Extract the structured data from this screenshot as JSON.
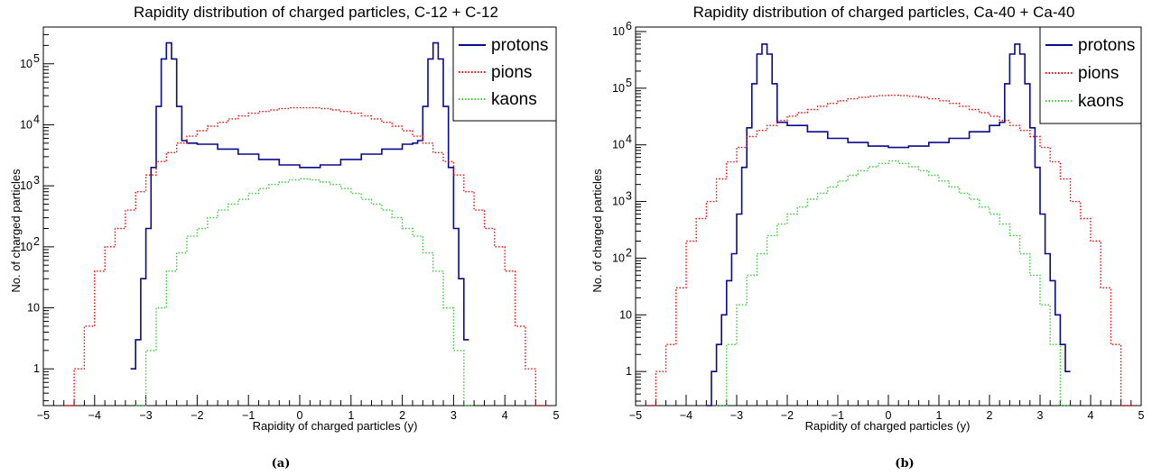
{
  "chart_data": [
    {
      "type": "line",
      "title": "Rapidity distribution of charged particles, C-12 + C-12",
      "xlabel": "Rapidity of charged particles (y)",
      "ylabel": "No. of charged particles",
      "caption": "(a)",
      "xlim": [
        -5,
        5
      ],
      "ylim": [
        0.25,
        400000
      ],
      "yscale": "log",
      "grid": false,
      "legend_position": "top-right",
      "x_ticks": [
        "−5",
        "−4",
        "−3",
        "−2",
        "−1",
        "0",
        "1",
        "2",
        "3",
        "4",
        "5"
      ],
      "y_ticks": [
        {
          "value": 1,
          "label": "1",
          "exp": ""
        },
        {
          "value": 10,
          "label": "10",
          "exp": ""
        },
        {
          "value": 100,
          "label": "10",
          "exp": "2"
        },
        {
          "value": 1000,
          "label": "10",
          "exp": "3"
        },
        {
          "value": 10000,
          "label": "10",
          "exp": "4"
        },
        {
          "value": 100000,
          "label": "10",
          "exp": "5"
        }
      ],
      "series": [
        {
          "name": "protons",
          "color": "#0a0a8c",
          "style": "solid",
          "x": [
            -3.3,
            -3.2,
            -3.1,
            -3.0,
            -2.9,
            -2.8,
            -2.7,
            -2.6,
            -2.5,
            -2.4,
            -2.3,
            -2.2,
            -2.0,
            -1.6,
            -1.2,
            -0.8,
            -0.4,
            0.0,
            0.4,
            0.8,
            1.2,
            1.6,
            2.0,
            2.2,
            2.3,
            2.4,
            2.5,
            2.6,
            2.7,
            2.8,
            2.9,
            3.0,
            3.1,
            3.2
          ],
          "y": [
            1,
            3,
            30,
            200,
            2000,
            20000,
            120000,
            220000,
            120000,
            20000,
            5500,
            5000,
            4800,
            4000,
            3300,
            2700,
            2200,
            2000,
            2200,
            2700,
            3300,
            4000,
            4800,
            5000,
            5500,
            20000,
            120000,
            220000,
            120000,
            20000,
            2000,
            200,
            30,
            3
          ]
        },
        {
          "name": "pions",
          "color": "#ff0000",
          "style": "dotted",
          "x": [
            -4.6,
            -4.4,
            -4.2,
            -4.0,
            -3.8,
            -3.6,
            -3.4,
            -3.2,
            -3.0,
            -2.8,
            -2.6,
            -2.4,
            -2.2,
            -2.0,
            -1.8,
            -1.6,
            -1.4,
            -1.2,
            -1.0,
            -0.8,
            -0.6,
            -0.4,
            -0.2,
            0.0,
            0.2,
            0.4,
            0.6,
            0.8,
            1.0,
            1.2,
            1.4,
            1.6,
            1.8,
            2.0,
            2.2,
            2.4,
            2.6,
            2.8,
            3.0,
            3.2,
            3.4,
            3.6,
            3.8,
            4.0,
            4.2,
            4.4,
            4.6
          ],
          "y": [
            0.25,
            1,
            5,
            40,
            100,
            200,
            400,
            800,
            1500,
            2500,
            3500,
            5000,
            6500,
            8000,
            9500,
            11000,
            12500,
            14000,
            15500,
            16500,
            17500,
            18500,
            19000,
            19000,
            19000,
            18500,
            17500,
            16500,
            15500,
            14000,
            12500,
            11000,
            9500,
            8000,
            6500,
            5000,
            3500,
            2500,
            1500,
            800,
            400,
            200,
            100,
            40,
            5,
            1,
            0.25
          ]
        },
        {
          "name": "kaons",
          "color": "#33cc33",
          "style": "dotted",
          "x": [
            -3.2,
            -3.0,
            -2.8,
            -2.6,
            -2.4,
            -2.2,
            -2.0,
            -1.8,
            -1.6,
            -1.4,
            -1.2,
            -1.0,
            -0.8,
            -0.6,
            -0.4,
            -0.2,
            0.0,
            0.2,
            0.4,
            0.6,
            0.8,
            1.0,
            1.2,
            1.4,
            1.6,
            1.8,
            2.0,
            2.2,
            2.4,
            2.6,
            2.8,
            3.0,
            3.2
          ],
          "y": [
            0.25,
            2,
            10,
            40,
            80,
            150,
            200,
            300,
            400,
            500,
            600,
            750,
            900,
            1050,
            1150,
            1250,
            1300,
            1250,
            1150,
            1050,
            900,
            750,
            600,
            500,
            400,
            300,
            200,
            150,
            80,
            40,
            10,
            2,
            0.25
          ]
        }
      ]
    },
    {
      "type": "line",
      "title": "Rapidity distribution of charged particles, Ca-40 + Ca-40",
      "xlabel": "Rapidity of charged particles (y)",
      "ylabel": "No. of charged particles",
      "caption": "(b)",
      "xlim": [
        -5,
        5
      ],
      "ylim": [
        0.25,
        1200000
      ],
      "yscale": "log",
      "grid": false,
      "legend_position": "top-right",
      "x_ticks": [
        "−5",
        "−4",
        "−3",
        "−2",
        "−1",
        "0",
        "1",
        "2",
        "3",
        "4",
        "5"
      ],
      "y_ticks": [
        {
          "value": 1,
          "label": "1",
          "exp": ""
        },
        {
          "value": 10,
          "label": "10",
          "exp": ""
        },
        {
          "value": 100,
          "label": "10",
          "exp": "2"
        },
        {
          "value": 1000,
          "label": "10",
          "exp": "3"
        },
        {
          "value": 10000,
          "label": "10",
          "exp": "4"
        },
        {
          "value": 100000,
          "label": "10",
          "exp": "5"
        },
        {
          "value": 1000000,
          "label": "10",
          "exp": "6"
        }
      ],
      "series": [
        {
          "name": "protons",
          "color": "#0a0a8c",
          "style": "solid",
          "x": [
            -3.6,
            -3.5,
            -3.4,
            -3.3,
            -3.2,
            -3.1,
            -3.0,
            -2.9,
            -2.8,
            -2.7,
            -2.6,
            -2.5,
            -2.4,
            -2.3,
            -2.2,
            -2.0,
            -1.6,
            -1.2,
            -0.8,
            -0.4,
            0.0,
            0.4,
            0.8,
            1.2,
            1.6,
            2.0,
            2.2,
            2.3,
            2.4,
            2.5,
            2.6,
            2.7,
            2.8,
            2.9,
            3.0,
            3.1,
            3.2,
            3.3,
            3.4,
            3.5
          ],
          "y": [
            0.25,
            1,
            3,
            10,
            40,
            120,
            600,
            4000,
            20000,
            120000,
            400000,
            600000,
            400000,
            120000,
            25000,
            22000,
            17000,
            13000,
            11000,
            9500,
            9000,
            9500,
            11000,
            13000,
            17000,
            22000,
            25000,
            120000,
            400000,
            600000,
            400000,
            120000,
            20000,
            4000,
            600,
            120,
            40,
            10,
            3,
            1
          ]
        },
        {
          "name": "pions",
          "color": "#ff0000",
          "style": "dotted",
          "x": [
            -4.8,
            -4.6,
            -4.4,
            -4.2,
            -4.0,
            -3.8,
            -3.6,
            -3.4,
            -3.2,
            -3.0,
            -2.8,
            -2.6,
            -2.4,
            -2.2,
            -2.0,
            -1.8,
            -1.6,
            -1.4,
            -1.2,
            -1.0,
            -0.8,
            -0.6,
            -0.4,
            -0.2,
            0.0,
            0.2,
            0.4,
            0.6,
            0.8,
            1.0,
            1.2,
            1.4,
            1.6,
            1.8,
            2.0,
            2.2,
            2.4,
            2.6,
            2.8,
            3.0,
            3.2,
            3.4,
            3.6,
            3.8,
            4.0,
            4.2,
            4.4,
            4.6
          ],
          "y": [
            0.25,
            1,
            3,
            30,
            200,
            500,
            1000,
            2500,
            5000,
            9000,
            14000,
            18000,
            22000,
            27000,
            32000,
            37000,
            42000,
            48000,
            54000,
            60000,
            65000,
            69000,
            72000,
            74000,
            75000,
            74000,
            72000,
            69000,
            65000,
            60000,
            54000,
            48000,
            42000,
            37000,
            32000,
            27000,
            22000,
            18000,
            14000,
            9000,
            5000,
            2500,
            1000,
            500,
            200,
            30,
            3,
            0.25
          ]
        },
        {
          "name": "kaons",
          "color": "#33cc33",
          "style": "dotted",
          "x": [
            -3.4,
            -3.2,
            -3.0,
            -2.8,
            -2.6,
            -2.4,
            -2.2,
            -2.0,
            -1.8,
            -1.6,
            -1.4,
            -1.2,
            -1.0,
            -0.8,
            -0.6,
            -0.4,
            -0.2,
            0.0,
            0.2,
            0.4,
            0.6,
            0.8,
            1.0,
            1.2,
            1.4,
            1.6,
            1.8,
            2.0,
            2.2,
            2.4,
            2.6,
            2.8,
            3.0,
            3.2,
            3.4
          ],
          "y": [
            0.25,
            3,
            15,
            50,
            120,
            250,
            400,
            600,
            800,
            1100,
            1400,
            1800,
            2300,
            2900,
            3500,
            4100,
            4700,
            5200,
            4700,
            4100,
            3500,
            2900,
            2300,
            1800,
            1400,
            1100,
            800,
            600,
            400,
            250,
            120,
            50,
            15,
            3,
            0.25
          ]
        }
      ]
    }
  ]
}
